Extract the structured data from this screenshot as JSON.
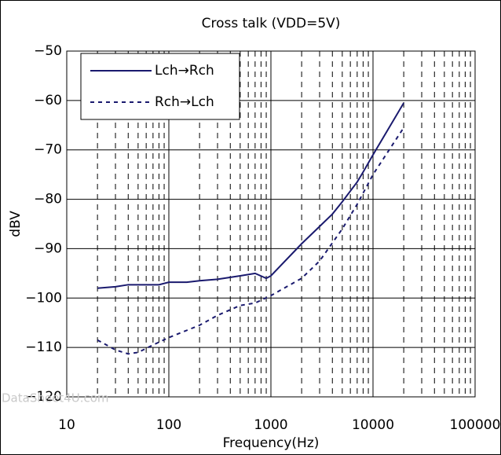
{
  "chart_data": {
    "type": "line",
    "title": "Cross talk (VDD=5V)",
    "xlabel": "Frequency(Hz)",
    "ylabel": "dBV",
    "watermark": "DataSheet4U.com",
    "xscale": "log",
    "xlim": [
      10,
      100000
    ],
    "xticks": [
      10,
      100,
      1000,
      10000,
      100000
    ],
    "ylim": [
      -120,
      -50
    ],
    "yticks": [
      {
        "value": -120,
        "label": "−120"
      },
      {
        "value": -110,
        "label": "−110"
      },
      {
        "value": -100,
        "label": "−100"
      },
      {
        "value": -90,
        "label": "−90"
      },
      {
        "value": -80,
        "label": "−80"
      },
      {
        "value": -70,
        "label": "−70"
      },
      {
        "value": -60,
        "label": "−60"
      },
      {
        "value": -50,
        "label": "−50"
      }
    ],
    "grid": true,
    "minor_grid": true,
    "legend": "upper left",
    "series": [
      {
        "name": "Lch→Rch",
        "color": "#1a1a6e",
        "style": "solid",
        "x": [
          20,
          30,
          40,
          50,
          70,
          80,
          100,
          150,
          200,
          300,
          500,
          700,
          900,
          1000,
          2000,
          3000,
          4000,
          5000,
          7000,
          8000,
          10000,
          20000
        ],
        "values": [
          -98,
          -97.7,
          -97.3,
          -97.3,
          -97.3,
          -97.3,
          -96.8,
          -96.8,
          -96.5,
          -96.2,
          -95.5,
          -95,
          -96,
          -95.5,
          -89,
          -85.5,
          -83,
          -80.5,
          -76.5,
          -74.5,
          -71,
          -60.5
        ]
      },
      {
        "name": "Rch→Lch",
        "color": "#1a1a6e",
        "style": "dashed",
        "x": [
          20,
          30,
          40,
          50,
          70,
          100,
          200,
          300,
          500,
          700,
          1000,
          2000,
          3000,
          5000,
          7000,
          10000,
          20000
        ],
        "values": [
          -108.5,
          -110.5,
          -111.3,
          -111,
          -109.5,
          -108,
          -105.5,
          -103.5,
          -101.5,
          -101,
          -99.5,
          -96,
          -92.5,
          -86,
          -81,
          -75,
          -65.5
        ]
      }
    ]
  }
}
